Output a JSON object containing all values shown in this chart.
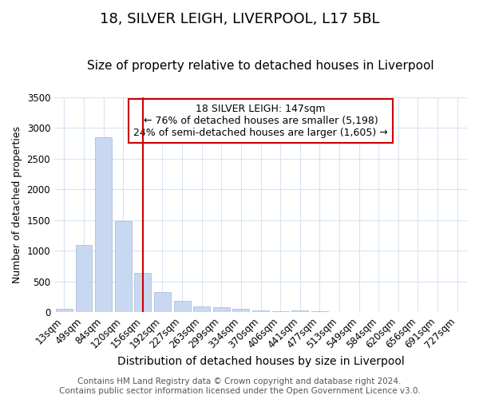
{
  "title": "18, SILVER LEIGH, LIVERPOOL, L17 5BL",
  "subtitle": "Size of property relative to detached houses in Liverpool",
  "xlabel": "Distribution of detached houses by size in Liverpool",
  "ylabel": "Number of detached properties",
  "categories": [
    "13sqm",
    "49sqm",
    "84sqm",
    "120sqm",
    "156sqm",
    "192sqm",
    "227sqm",
    "263sqm",
    "299sqm",
    "334sqm",
    "370sqm",
    "406sqm",
    "441sqm",
    "477sqm",
    "513sqm",
    "549sqm",
    "584sqm",
    "620sqm",
    "656sqm",
    "691sqm",
    "727sqm"
  ],
  "values": [
    50,
    1100,
    2850,
    1480,
    640,
    330,
    190,
    100,
    80,
    55,
    30,
    20,
    30,
    15,
    2,
    0,
    0,
    0,
    0,
    0,
    0
  ],
  "bar_color": "#c8d8f0",
  "bar_edge_color": "#a0b8d8",
  "vline_x": 4,
  "vline_color": "#cc0000",
  "annotation_text": "18 SILVER LEIGH: 147sqm\n← 76% of detached houses are smaller (5,198)\n24% of semi-detached houses are larger (1,605) →",
  "annotation_box_color": "#ffffff",
  "annotation_box_edge": "#cc0000",
  "ylim": [
    0,
    3500
  ],
  "yticks": [
    0,
    500,
    1000,
    1500,
    2000,
    2500,
    3000,
    3500
  ],
  "bg_color": "#ffffff",
  "plot_bg_color": "#ffffff",
  "grid_color": "#d8e4f0",
  "footer": "Contains HM Land Registry data © Crown copyright and database right 2024.\nContains public sector information licensed under the Open Government Licence v3.0.",
  "title_fontsize": 13,
  "subtitle_fontsize": 11,
  "xlabel_fontsize": 10,
  "ylabel_fontsize": 9,
  "tick_fontsize": 8.5,
  "annotation_fontsize": 9,
  "footer_fontsize": 7.5
}
